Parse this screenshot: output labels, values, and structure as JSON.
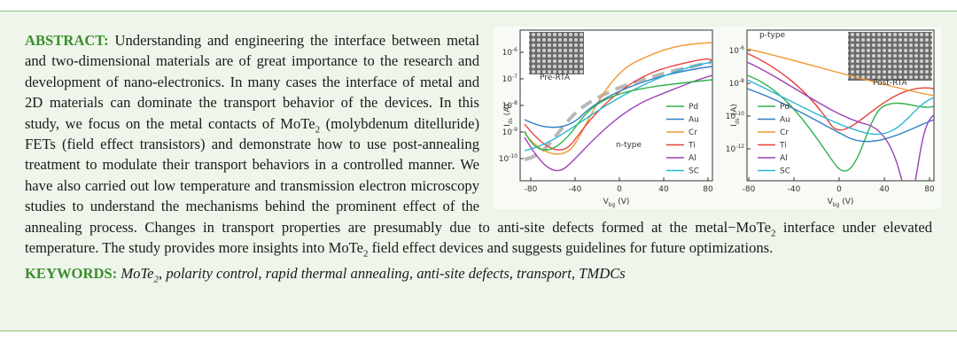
{
  "abstract": {
    "label": "ABSTRACT:",
    "parts": [
      "Understanding and engineering the interface between metal and two-dimensional materials are of great importance to the research and development of nano-electronics. In many cases the interface of metal and 2D materials can dominate the transport behavior of the devices. In this study, we focus on the metal contacts of MoTe",
      "2",
      " (molybdenum ditelluride) FETs (field effect transistors) and demonstrate how to use post-annealing treatment to modulate their transport behaviors in a controlled manner. We have also carried out low temperature and transmission electron microscopy studies to understand the mechanisms behind the prominent effect of the annealing process. Changes in transport properties are presumably due to anti-site defects formed at the metal−MoTe",
      "2",
      " interface under elevated temperature. The study provides more insights into MoTe",
      "2",
      " field effect devices and suggests guidelines for future optimizations."
    ]
  },
  "keywords": {
    "label": "KEYWORDS:",
    "parts": [
      "MoTe",
      "2",
      ", polarity control, rapid thermal annealing, anti-site defects, transport, TMDCs"
    ]
  },
  "figure": {
    "panels": [
      {
        "labels": [
          "Pre-RTA",
          "n-type"
        ],
        "ylabel": {
          "main": "I",
          "sub": "ds",
          "unit": " (A)"
        },
        "xlabel": {
          "main": "V",
          "sub": "bg",
          "unit": " (V)"
        },
        "yticks": [
          {
            "base": "10",
            "exp": "-6"
          },
          {
            "base": "10",
            "exp": "-7"
          },
          {
            "base": "10",
            "exp": "-8"
          },
          {
            "base": "10",
            "exp": "-9"
          },
          {
            "base": "10",
            "exp": "-10"
          }
        ],
        "xticks": [
          -80,
          -40,
          0,
          40,
          80
        ],
        "legend": [
          {
            "name": "Pd",
            "color": "#2db34a"
          },
          {
            "name": "Au",
            "color": "#2f7fc1"
          },
          {
            "name": "Cr",
            "color": "#f0962e"
          },
          {
            "name": "Ti",
            "color": "#e8413c"
          },
          {
            "name": "Al",
            "color": "#9b3fb5"
          },
          {
            "name": "SC",
            "color": "#27b7d6"
          }
        ]
      },
      {
        "labels": [
          "p-type",
          "Post-RTA"
        ],
        "ylabel": {
          "main": "I",
          "sub": "ds",
          "unit": " (A)"
        },
        "xlabel": {
          "main": "V",
          "sub": "bg",
          "unit": " (V)"
        },
        "yticks": [
          {
            "base": "10",
            "exp": "-6"
          },
          {
            "base": "10",
            "exp": "-8"
          },
          {
            "base": "10",
            "exp": "-10"
          },
          {
            "base": "10",
            "exp": "-12"
          }
        ],
        "xticks": [
          -80,
          -40,
          0,
          40,
          80
        ],
        "legend": [
          {
            "name": "Pd",
            "color": "#2db34a"
          },
          {
            "name": "Au",
            "color": "#2f7fc1"
          },
          {
            "name": "Cr",
            "color": "#f0962e"
          },
          {
            "name": "Ti",
            "color": "#e8413c"
          },
          {
            "name": "Al",
            "color": "#9b3fb5"
          },
          {
            "name": "SC",
            "color": "#27b7d6"
          }
        ]
      }
    ]
  }
}
